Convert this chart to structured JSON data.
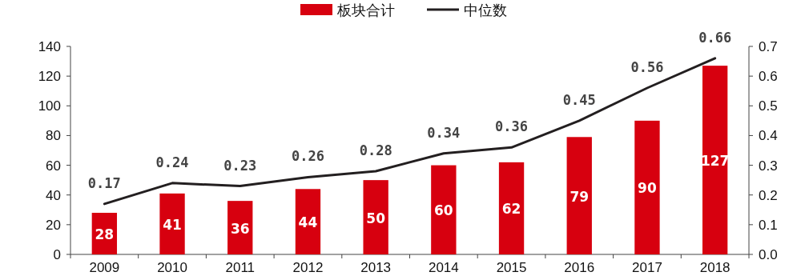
{
  "chart_data": {
    "type": "bar",
    "categories": [
      "2009",
      "2010",
      "2011",
      "2012",
      "2013",
      "2014",
      "2015",
      "2016",
      "2017",
      "2018"
    ],
    "series": [
      {
        "name": "板块合计",
        "color": "#d7000f",
        "values": [
          28,
          41,
          36,
          44,
          50,
          60,
          62,
          79,
          90,
          127
        ]
      },
      {
        "name": "中位数",
        "type": "line",
        "axis": "y2",
        "color": "#231f20",
        "values": [
          0.17,
          0.24,
          0.23,
          0.26,
          0.28,
          0.34,
          0.36,
          0.45,
          0.56,
          0.66
        ]
      }
    ],
    "ylim": [
      0,
      140
    ],
    "yticks": [
      0,
      20,
      40,
      60,
      80,
      100,
      120,
      140
    ],
    "y2lim": [
      0,
      0.7
    ],
    "y2ticks": [
      {
        "value": 0,
        "label": "0.0"
      },
      {
        "value": 0.1,
        "label": "0.1"
      },
      {
        "value": 0.2,
        "label": "0.2"
      },
      {
        "value": 0.3,
        "label": "0.3"
      },
      {
        "value": 0.4,
        "label": "0.4"
      },
      {
        "value": 0.5,
        "label": "0.5"
      },
      {
        "value": 0.6,
        "label": "0.6"
      },
      {
        "value": 0.7,
        "label": "0.7"
      }
    ],
    "data_labels": true,
    "legend": "top"
  }
}
